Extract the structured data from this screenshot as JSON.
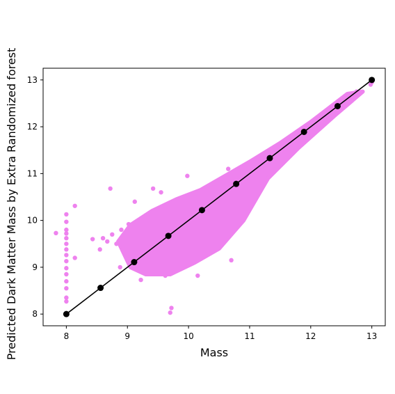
{
  "chart_data": {
    "type": "scatter",
    "xlabel": "Mass",
    "ylabel": "Predicted Dark Matter Mass by Extra Randomized forest",
    "xlim": [
      7.62,
      13.22
    ],
    "ylim": [
      7.75,
      13.25
    ],
    "xticks": [
      "8",
      "9",
      "10",
      "11",
      "12",
      "13"
    ],
    "yticks": [
      "8",
      "9",
      "10",
      "11",
      "12",
      "13"
    ],
    "grid": false,
    "scatter_color": "#ee82ee",
    "line_color": "#000000",
    "series": [
      {
        "kind": "scatter",
        "description": "Dense cloud of predictions",
        "points": [
          [
            7.83,
            9.73
          ],
          [
            8.0,
            10.13
          ],
          [
            8.0,
            9.97
          ],
          [
            8.0,
            9.8
          ],
          [
            8.0,
            9.72
          ],
          [
            8.0,
            9.62
          ],
          [
            8.0,
            9.5
          ],
          [
            8.0,
            9.38
          ],
          [
            8.0,
            9.26
          ],
          [
            8.0,
            9.13
          ],
          [
            8.0,
            8.98
          ],
          [
            8.0,
            8.85
          ],
          [
            8.0,
            8.7
          ],
          [
            8.0,
            8.55
          ],
          [
            8.0,
            8.35
          ],
          [
            8.0,
            8.27
          ],
          [
            8.14,
            10.31
          ],
          [
            8.14,
            9.2
          ],
          [
            8.43,
            9.6
          ],
          [
            8.55,
            9.38
          ],
          [
            8.6,
            9.62
          ],
          [
            8.67,
            9.55
          ],
          [
            8.72,
            10.68
          ],
          [
            8.75,
            9.7
          ],
          [
            8.82,
            9.5
          ],
          [
            8.88,
            9.0
          ],
          [
            8.9,
            9.8
          ],
          [
            9.02,
            9.92
          ],
          [
            9.12,
            10.4
          ],
          [
            9.22,
            8.73
          ],
          [
            9.42,
            10.68
          ],
          [
            9.55,
            10.6
          ],
          [
            9.62,
            8.82
          ],
          [
            9.7,
            8.03
          ],
          [
            9.72,
            8.13
          ],
          [
            9.98,
            10.95
          ],
          [
            10.15,
            8.82
          ],
          [
            10.65,
            11.1
          ],
          [
            10.7,
            9.15
          ],
          [
            10.85,
            11.0
          ],
          [
            11.05,
            11.15
          ],
          [
            11.3,
            11.4
          ],
          [
            11.55,
            11.62
          ],
          [
            11.78,
            11.8
          ],
          [
            12.05,
            12.05
          ],
          [
            12.3,
            12.3
          ],
          [
            12.55,
            12.45
          ],
          [
            12.75,
            12.75
          ],
          [
            12.98,
            12.9
          ],
          [
            13.0,
            12.95
          ]
        ]
      },
      {
        "kind": "line",
        "description": "Ideal prediction line",
        "points": [
          [
            8.0,
            8.0
          ],
          [
            8.56,
            8.56
          ],
          [
            9.11,
            9.11
          ],
          [
            9.67,
            9.67
          ],
          [
            10.22,
            10.22
          ],
          [
            10.78,
            10.78
          ],
          [
            11.33,
            11.33
          ],
          [
            11.89,
            11.89
          ],
          [
            12.44,
            12.44
          ],
          [
            13.0,
            13.0
          ]
        ]
      }
    ]
  }
}
